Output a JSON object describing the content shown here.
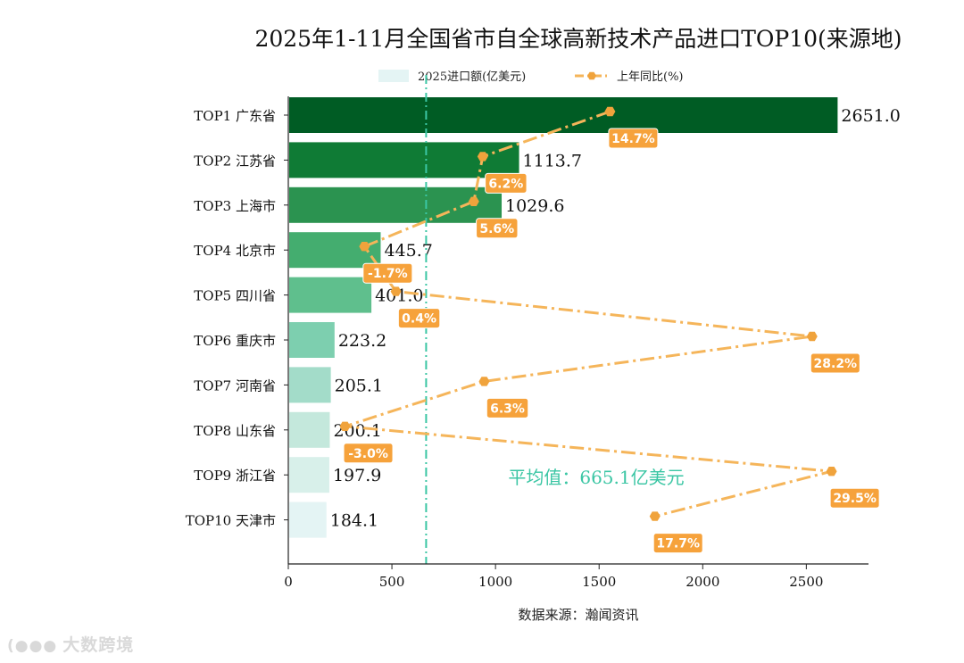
{
  "chart_data": {
    "type": "bar+line",
    "orientation": "horizontal",
    "title": "2025年1-11月全国省市自全球高新技术产品进口TOP10(来源地)",
    "xlabel": "数据来源：瀚闻资讯",
    "xlim": [
      0,
      2800
    ],
    "xticks": [
      0,
      500,
      1000,
      1500,
      2000,
      2500
    ],
    "legend": {
      "bar_label": "2025进口额(亿美元)",
      "line_label": "上年同比(%)",
      "position": "top-center"
    },
    "categories": [
      "TOP1 广东省",
      "TOP2 江苏省",
      "TOP3 上海市",
      "TOP4 北京市",
      "TOP5 四川省",
      "TOP6 重庆市",
      "TOP7 河南省",
      "TOP8 山东省",
      "TOP9 浙江省",
      "TOP10 天津市"
    ],
    "values": [
      2651.0,
      1113.7,
      1029.6,
      445.7,
      401.0,
      223.2,
      205.1,
      200.1,
      197.9,
      184.1
    ],
    "value_labels": [
      "2651.0",
      "1113.7",
      "1029.6",
      "445.7",
      "401.0",
      "223.2",
      "205.1",
      "200.1",
      "197.9",
      "184.1"
    ],
    "yoy_percent": [
      14.7,
      6.2,
      5.6,
      -1.7,
      0.4,
      28.2,
      6.3,
      -3.0,
      29.5,
      17.7
    ],
    "yoy_labels": [
      "14.7%",
      "6.2%",
      "5.6%",
      "-1.7%",
      "0.4%",
      "28.2%",
      "6.3%",
      "-3.0%",
      "29.5%",
      "17.7%"
    ],
    "yoy_range": [
      -5,
      30
    ],
    "average": 665.1,
    "average_label": "平均值：665.1亿美元",
    "bar_colors": [
      "#005c24",
      "#0f7b35",
      "#2b9350",
      "#44ad6f",
      "#5fbf8d",
      "#7dcfaf",
      "#a3dcc9",
      "#c4e8dc",
      "#d8f0ea",
      "#e4f4f4"
    ],
    "line_color": "#f5b55a",
    "marker_color": "#f0a33c",
    "label_bg_color": "#f6a23b",
    "average_color": "#3bc6a4"
  },
  "watermark": {
    "logo": "(●●●",
    "text": "大数跨境"
  }
}
